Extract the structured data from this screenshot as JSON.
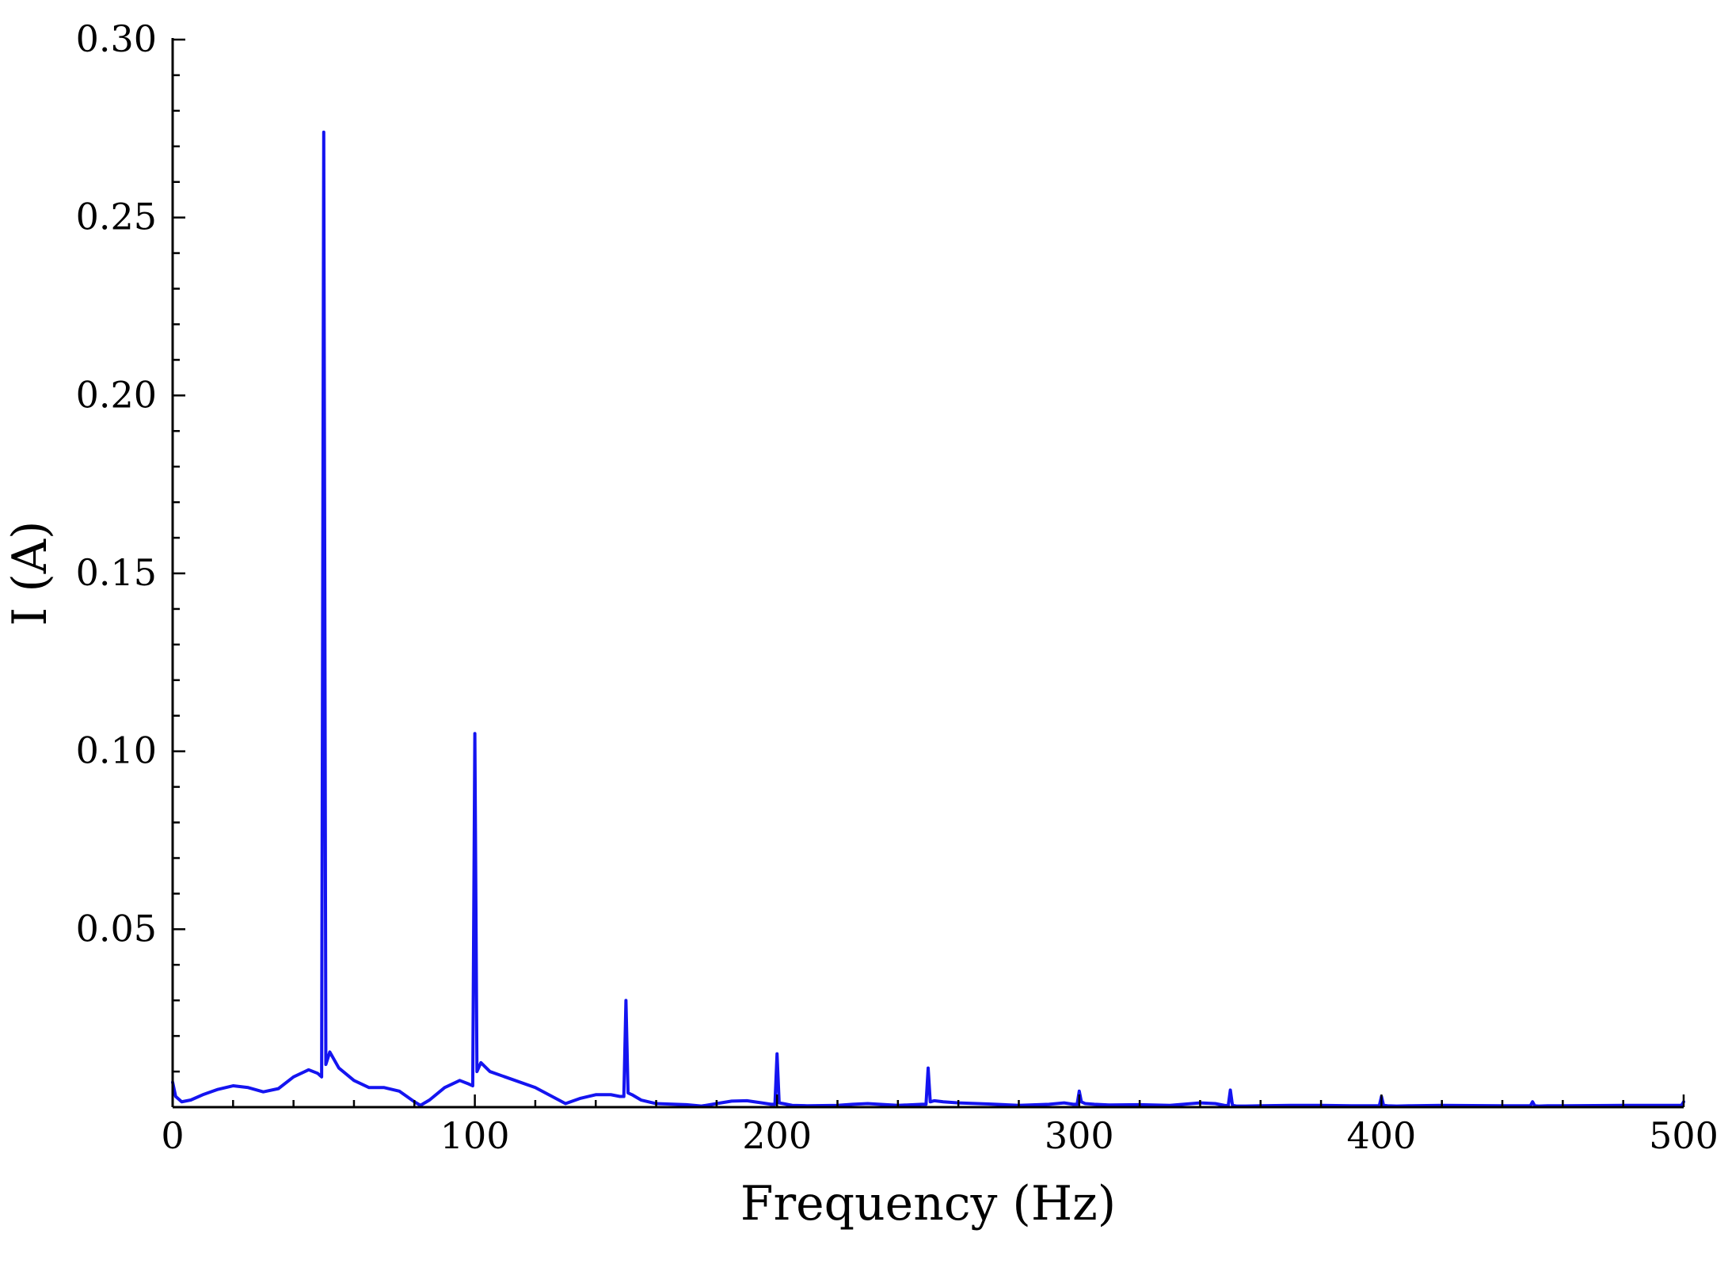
{
  "chart_data": {
    "type": "line",
    "title": "",
    "xlabel": "Frequency (Hz)",
    "ylabel": "I (A)",
    "xlim": [
      0,
      500
    ],
    "ylim": [
      0,
      0.3
    ],
    "xticks": [
      0,
      100,
      200,
      300,
      400,
      500
    ],
    "yticks": [
      0.05,
      0.1,
      0.15,
      0.2,
      0.25,
      0.3
    ],
    "xtick_labels": [
      "0",
      "100",
      "200",
      "300",
      "400",
      "500"
    ],
    "ytick_labels": [
      "0.05",
      "0.10",
      "0.15",
      "0.20",
      "0.25",
      "0.30"
    ],
    "grid": false,
    "legend": "none",
    "series": [
      {
        "color": "#1414f0",
        "x": [
          0,
          1,
          3,
          6,
          10,
          15,
          20,
          25,
          30,
          35,
          40,
          45,
          48,
          49.3,
          50,
          50.7,
          52,
          55,
          60,
          65,
          70,
          75,
          80,
          82,
          85,
          90,
          95,
          98,
          99.3,
          100,
          100.7,
          102,
          105,
          110,
          120,
          130,
          135,
          140,
          145,
          148,
          149.3,
          150,
          150.7,
          152,
          155,
          160,
          170,
          175,
          180,
          185,
          190,
          195,
          198,
          199.3,
          200,
          200.7,
          202,
          205,
          210,
          220,
          225,
          230,
          240,
          248,
          249.3,
          250,
          250.7,
          252,
          255,
          260,
          270,
          280,
          290,
          295,
          298,
          299.3,
          300,
          300.7,
          302,
          305,
          310,
          320,
          330,
          340,
          345,
          348,
          349.3,
          350,
          350.7,
          352,
          355,
          360,
          370,
          380,
          390,
          398,
          399.3,
          400,
          400.7,
          402,
          405,
          410,
          420,
          440,
          448,
          449.3,
          450,
          450.7,
          452,
          455,
          460,
          480,
          498,
          499.3,
          500
        ],
        "y": [
          0.007,
          0.003,
          0.0015,
          0.002,
          0.0035,
          0.005,
          0.006,
          0.0055,
          0.0043,
          0.0052,
          0.0085,
          0.0105,
          0.0095,
          0.0085,
          0.274,
          0.012,
          0.0155,
          0.011,
          0.0075,
          0.0055,
          0.0055,
          0.0045,
          0.0015,
          0.0005,
          0.002,
          0.0055,
          0.0075,
          0.0065,
          0.006,
          0.105,
          0.01,
          0.0125,
          0.01,
          0.0085,
          0.0055,
          0.001,
          0.0025,
          0.0035,
          0.0035,
          0.003,
          0.003,
          0.03,
          0.004,
          0.0035,
          0.002,
          0.001,
          0.0007,
          0.0003,
          0.001,
          0.0017,
          0.0018,
          0.0012,
          0.0008,
          0.0008,
          0.015,
          0.0012,
          0.001,
          0.0005,
          0.0004,
          0.0005,
          0.0008,
          0.001,
          0.0005,
          0.0008,
          0.0008,
          0.011,
          0.0015,
          0.0018,
          0.0015,
          0.0012,
          0.0009,
          0.0005,
          0.0008,
          0.0012,
          0.0008,
          0.0008,
          0.0045,
          0.0015,
          0.001,
          0.0008,
          0.0006,
          0.0007,
          0.0005,
          0.0012,
          0.001,
          0.0005,
          0.0004,
          0.0048,
          0.0005,
          0.0003,
          0.0003,
          0.0004,
          0.0005,
          0.0005,
          0.0004,
          0.0004,
          0.0004,
          0.003,
          0.0005,
          0.0004,
          0.0003,
          0.0004,
          0.0005,
          0.0004,
          0.0004,
          0.0004,
          0.0015,
          0.0004,
          0.0003,
          0.0004,
          0.0004,
          0.0005,
          0.0005,
          0.0005,
          0.0015
        ]
      }
    ]
  }
}
